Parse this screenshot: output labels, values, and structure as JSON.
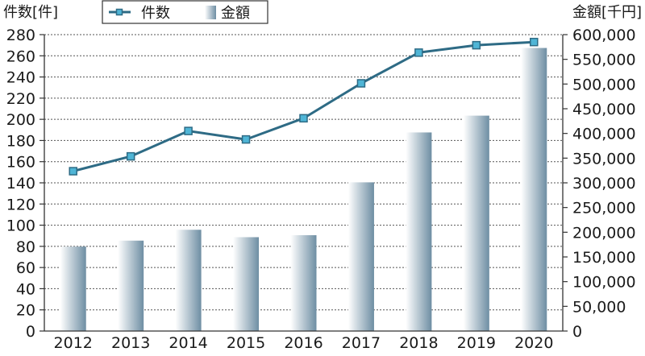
{
  "chart_data": {
    "type": "bar",
    "categories": [
      "2012",
      "2013",
      "2014",
      "2015",
      "2016",
      "2017",
      "2018",
      "2019",
      "2020"
    ],
    "series": [
      {
        "name": "件数",
        "kind": "line",
        "axis": "left",
        "values": [
          151,
          165,
          189,
          181,
          201,
          234,
          263,
          270,
          273
        ]
      },
      {
        "name": "金額",
        "kind": "bar",
        "axis": "right",
        "values": [
          171000,
          183000,
          205000,
          190000,
          194000,
          301000,
          402000,
          436000,
          573000
        ]
      }
    ],
    "y_left": {
      "label": "件数[件]",
      "ylim": [
        0,
        280
      ],
      "ticks": [
        "0",
        "20",
        "40",
        "60",
        "80",
        "100",
        "120",
        "140",
        "160",
        "180",
        "200",
        "220",
        "240",
        "260",
        "280"
      ]
    },
    "y_right": {
      "label": "金額[千円]",
      "ylim": [
        0,
        600000
      ],
      "ticks": [
        "0",
        "50,000",
        "100,000",
        "150,000",
        "200,000",
        "250,000",
        "300,000",
        "350,000",
        "400,000",
        "450,000",
        "500,000",
        "550,000",
        "600,000"
      ]
    },
    "legend": {
      "position": "top-center"
    },
    "grid": true,
    "colors": {
      "line": "#2e6b85",
      "marker_fill": "#4fb5d6",
      "bar_light": "#ffffff",
      "bar_dark": "#6e8ea3",
      "grid": "#555555"
    }
  }
}
